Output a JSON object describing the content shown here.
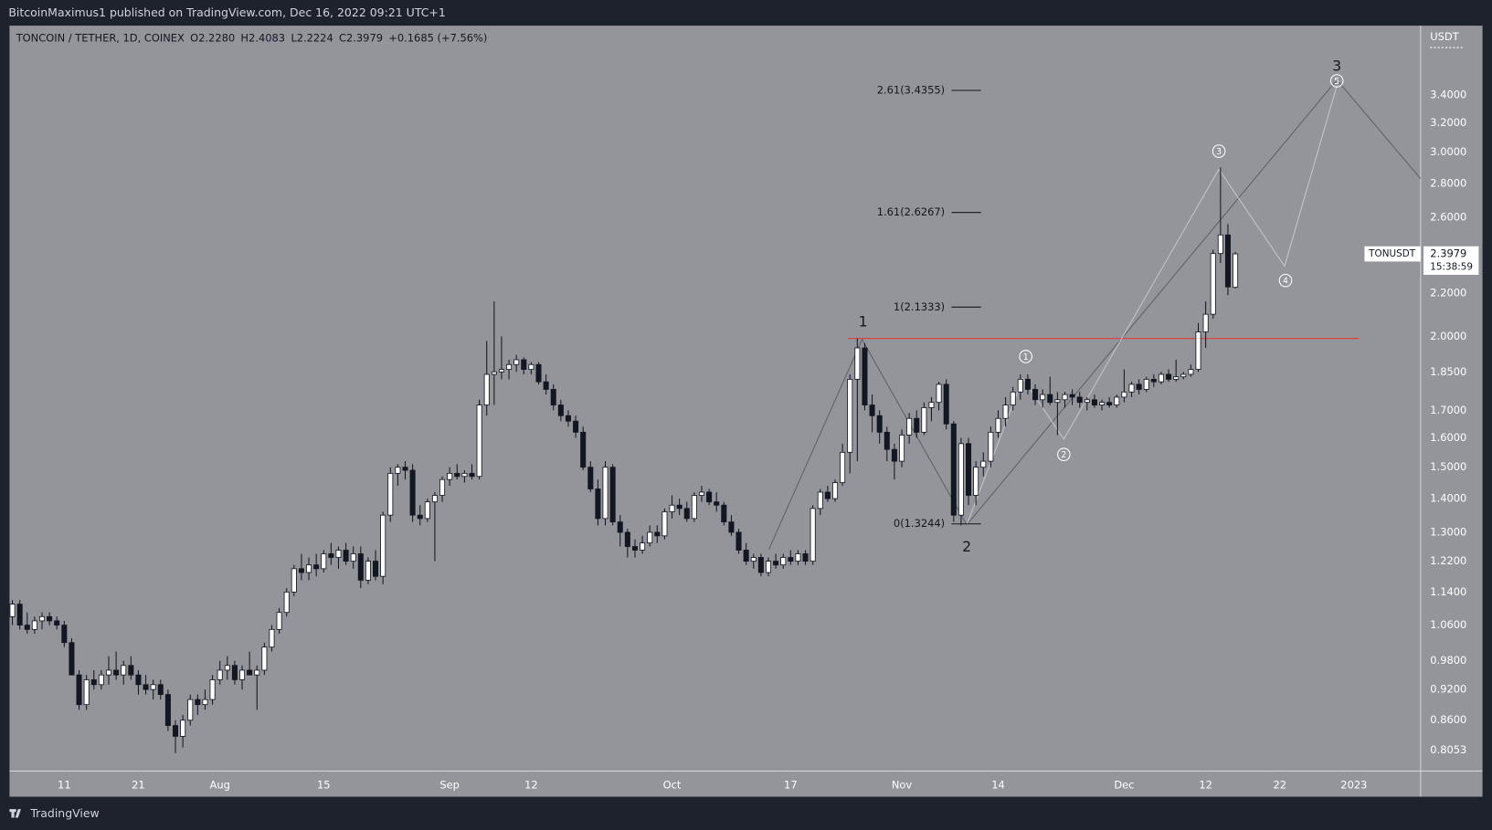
{
  "header": {
    "publisher": "BitcoinMaximus1 published on TradingView.com, Dec 16, 2022 09:21 UTC+1"
  },
  "footer": {
    "brand": "TradingView"
  },
  "chart_data": {
    "type": "candlestick",
    "title": "TONCOIN / TETHER, 1D, COINEX",
    "legend_items": [
      {
        "key": "O",
        "value": "2.2280"
      },
      {
        "key": "H",
        "value": "2.4083"
      },
      {
        "key": "L",
        "value": "2.2224"
      },
      {
        "key": "C",
        "value": "2.3979"
      }
    ],
    "change": "+0.1685 (+7.56%)",
    "currency": "USDT",
    "symbol": "TONUSDT",
    "last_price": 2.3979,
    "countdown": "15:38:59",
    "up_color": "#ffffff",
    "down_color": "#131722",
    "log_scale": true,
    "xlim": [
      -0.385,
      190.0
    ],
    "ylim": [
      0.769,
      3.961
    ],
    "xticks": [
      {
        "value": 7,
        "label": "11"
      },
      {
        "value": 17,
        "label": "21"
      },
      {
        "value": 28,
        "label": "Aug"
      },
      {
        "value": 42,
        "label": "15"
      },
      {
        "value": 59,
        "label": "Sep"
      },
      {
        "value": 70,
        "label": "12"
      },
      {
        "value": 89,
        "label": "Oct"
      },
      {
        "value": 105,
        "label": "17"
      },
      {
        "value": 120,
        "label": "Nov"
      },
      {
        "value": 133,
        "label": "14"
      },
      {
        "value": 150,
        "label": "Dec"
      },
      {
        "value": 161,
        "label": "12"
      },
      {
        "value": 171,
        "label": "22"
      },
      {
        "value": 181,
        "label": "2023"
      }
    ],
    "yticks": [
      {
        "value": 3.4,
        "label": "3.4000"
      },
      {
        "value": 3.2,
        "label": "3.2000"
      },
      {
        "value": 3.0,
        "label": "3.0000"
      },
      {
        "value": 2.8,
        "label": "2.8000"
      },
      {
        "value": 2.6,
        "label": "2.6000"
      },
      {
        "value": 2.2,
        "label": "2.2000"
      },
      {
        "value": 2.0,
        "label": "2.0000"
      },
      {
        "value": 1.85,
        "label": "1.8500"
      },
      {
        "value": 1.7,
        "label": "1.7000"
      },
      {
        "value": 1.6,
        "label": "1.6000"
      },
      {
        "value": 1.5,
        "label": "1.5000"
      },
      {
        "value": 1.4,
        "label": "1.4000"
      },
      {
        "value": 1.3,
        "label": "1.3000"
      },
      {
        "value": 1.22,
        "label": "1.2200"
      },
      {
        "value": 1.14,
        "label": "1.1400"
      },
      {
        "value": 1.06,
        "label": "1.0600"
      },
      {
        "value": 0.98,
        "label": "0.9800"
      },
      {
        "value": 0.92,
        "label": "0.9200"
      },
      {
        "value": 0.86,
        "label": "0.8600"
      },
      {
        "value": 0.8053,
        "label": "0.8053"
      }
    ],
    "fib_levels": [
      {
        "label": "2.61(3.4355)",
        "value": 3.4355
      },
      {
        "label": "1.61(2.6267)",
        "value": 2.6267
      },
      {
        "label": "1(2.1333)",
        "value": 2.1333
      },
      {
        "label": "0(1.3244)",
        "value": 1.3244
      }
    ],
    "waves": [
      "1",
      "2",
      "3"
    ],
    "subwaves": [
      "1",
      "2",
      "3",
      "4",
      "5"
    ],
    "series": [
      {
        "name": "TONUSDT",
        "values": [
          [
            1.08,
            1.12,
            1.06,
            1.11
          ],
          [
            1.11,
            1.12,
            1.05,
            1.06
          ],
          [
            1.06,
            1.09,
            1.04,
            1.05
          ],
          [
            1.05,
            1.08,
            1.04,
            1.07
          ],
          [
            1.07,
            1.09,
            1.05,
            1.08
          ],
          [
            1.08,
            1.09,
            1.06,
            1.07
          ],
          [
            1.07,
            1.08,
            1.05,
            1.06
          ],
          [
            1.06,
            1.07,
            1.01,
            1.02
          ],
          [
            1.02,
            1.03,
            0.95,
            0.95
          ],
          [
            0.95,
            0.96,
            0.88,
            0.89
          ],
          [
            0.89,
            0.95,
            0.88,
            0.94
          ],
          [
            0.94,
            0.96,
            0.92,
            0.93
          ],
          [
            0.93,
            0.96,
            0.92,
            0.95
          ],
          [
            0.95,
            0.99,
            0.93,
            0.96
          ],
          [
            0.96,
            1.0,
            0.94,
            0.95
          ],
          [
            0.95,
            0.98,
            0.93,
            0.97
          ],
          [
            0.97,
            0.99,
            0.94,
            0.95
          ],
          [
            0.95,
            0.96,
            0.91,
            0.93
          ],
          [
            0.93,
            0.95,
            0.91,
            0.92
          ],
          [
            0.92,
            0.94,
            0.9,
            0.93
          ],
          [
            0.93,
            0.94,
            0.9,
            0.91
          ],
          [
            0.91,
            0.92,
            0.84,
            0.85
          ],
          [
            0.85,
            0.86,
            0.8,
            0.83
          ],
          [
            0.83,
            0.87,
            0.81,
            0.86
          ],
          [
            0.86,
            0.91,
            0.85,
            0.9
          ],
          [
            0.9,
            0.91,
            0.87,
            0.89
          ],
          [
            0.89,
            0.92,
            0.88,
            0.9
          ],
          [
            0.9,
            0.95,
            0.89,
            0.94
          ],
          [
            0.94,
            0.98,
            0.93,
            0.96
          ],
          [
            0.96,
            0.99,
            0.94,
            0.97
          ],
          [
            0.97,
            0.98,
            0.93,
            0.94
          ],
          [
            0.94,
            0.97,
            0.92,
            0.96
          ],
          [
            0.96,
            1.0,
            0.95,
            0.95
          ],
          [
            0.95,
            0.97,
            0.88,
            0.96
          ],
          [
            0.96,
            1.02,
            0.95,
            1.01
          ],
          [
            1.01,
            1.06,
            1.0,
            1.05
          ],
          [
            1.05,
            1.1,
            1.04,
            1.09
          ],
          [
            1.09,
            1.15,
            1.08,
            1.14
          ],
          [
            1.14,
            1.21,
            1.13,
            1.2
          ],
          [
            1.2,
            1.24,
            1.17,
            1.19
          ],
          [
            1.19,
            1.23,
            1.17,
            1.21
          ],
          [
            1.21,
            1.24,
            1.18,
            1.2
          ],
          [
            1.2,
            1.25,
            1.19,
            1.24
          ],
          [
            1.24,
            1.27,
            1.21,
            1.23
          ],
          [
            1.23,
            1.26,
            1.2,
            1.25
          ],
          [
            1.25,
            1.27,
            1.21,
            1.22
          ],
          [
            1.22,
            1.26,
            1.2,
            1.24
          ],
          [
            1.24,
            1.26,
            1.15,
            1.17
          ],
          [
            1.17,
            1.23,
            1.16,
            1.22
          ],
          [
            1.22,
            1.25,
            1.17,
            1.18
          ],
          [
            1.18,
            1.36,
            1.16,
            1.35
          ],
          [
            1.35,
            1.5,
            1.33,
            1.48
          ],
          [
            1.48,
            1.51,
            1.44,
            1.5
          ],
          [
            1.5,
            1.52,
            1.46,
            1.49
          ],
          [
            1.49,
            1.51,
            1.33,
            1.35
          ],
          [
            1.35,
            1.38,
            1.32,
            1.34
          ],
          [
            1.34,
            1.4,
            1.33,
            1.39
          ],
          [
            1.39,
            1.42,
            1.22,
            1.41
          ],
          [
            1.41,
            1.47,
            1.39,
            1.46
          ],
          [
            1.46,
            1.5,
            1.44,
            1.48
          ],
          [
            1.48,
            1.51,
            1.46,
            1.47
          ],
          [
            1.47,
            1.49,
            1.45,
            1.48
          ],
          [
            1.48,
            1.51,
            1.46,
            1.47
          ],
          [
            1.47,
            1.74,
            1.46,
            1.72
          ],
          [
            1.72,
            1.98,
            1.68,
            1.84
          ],
          [
            1.84,
            2.16,
            1.72,
            1.85
          ],
          [
            1.85,
            2.0,
            1.82,
            1.86
          ],
          [
            1.86,
            1.9,
            1.82,
            1.88
          ],
          [
            1.88,
            1.92,
            1.85,
            1.9
          ],
          [
            1.9,
            1.91,
            1.84,
            1.86
          ],
          [
            1.86,
            1.89,
            1.84,
            1.88
          ],
          [
            1.88,
            1.89,
            1.8,
            1.81
          ],
          [
            1.81,
            1.84,
            1.76,
            1.78
          ],
          [
            1.78,
            1.8,
            1.7,
            1.72
          ],
          [
            1.72,
            1.74,
            1.66,
            1.68
          ],
          [
            1.68,
            1.7,
            1.64,
            1.66
          ],
          [
            1.66,
            1.68,
            1.6,
            1.62
          ],
          [
            1.62,
            1.64,
            1.49,
            1.5
          ],
          [
            1.5,
            1.52,
            1.42,
            1.43
          ],
          [
            1.43,
            1.46,
            1.32,
            1.34
          ],
          [
            1.34,
            1.52,
            1.32,
            1.5
          ],
          [
            1.5,
            1.51,
            1.32,
            1.33
          ],
          [
            1.33,
            1.35,
            1.26,
            1.3
          ],
          [
            1.3,
            1.31,
            1.23,
            1.26
          ],
          [
            1.26,
            1.28,
            1.23,
            1.25
          ],
          [
            1.25,
            1.29,
            1.24,
            1.27
          ],
          [
            1.27,
            1.32,
            1.26,
            1.3
          ],
          [
            1.3,
            1.32,
            1.27,
            1.29
          ],
          [
            1.29,
            1.37,
            1.28,
            1.36
          ],
          [
            1.36,
            1.41,
            1.34,
            1.38
          ],
          [
            1.38,
            1.4,
            1.35,
            1.37
          ],
          [
            1.37,
            1.39,
            1.33,
            1.34
          ],
          [
            1.34,
            1.42,
            1.33,
            1.41
          ],
          [
            1.41,
            1.44,
            1.39,
            1.42
          ],
          [
            1.42,
            1.43,
            1.38,
            1.39
          ],
          [
            1.39,
            1.42,
            1.36,
            1.38
          ],
          [
            1.38,
            1.39,
            1.32,
            1.33
          ],
          [
            1.33,
            1.35,
            1.29,
            1.3
          ],
          [
            1.3,
            1.31,
            1.24,
            1.25
          ],
          [
            1.25,
            1.27,
            1.21,
            1.22
          ],
          [
            1.22,
            1.24,
            1.2,
            1.23
          ],
          [
            1.23,
            1.24,
            1.18,
            1.19
          ],
          [
            1.19,
            1.23,
            1.18,
            1.22
          ],
          [
            1.22,
            1.24,
            1.2,
            1.21
          ],
          [
            1.21,
            1.24,
            1.2,
            1.23
          ],
          [
            1.23,
            1.25,
            1.21,
            1.22
          ],
          [
            1.22,
            1.25,
            1.21,
            1.24
          ],
          [
            1.24,
            1.25,
            1.21,
            1.22
          ],
          [
            1.22,
            1.38,
            1.21,
            1.37
          ],
          [
            1.37,
            1.43,
            1.35,
            1.42
          ],
          [
            1.42,
            1.44,
            1.39,
            1.4
          ],
          [
            1.4,
            1.46,
            1.39,
            1.45
          ],
          [
            1.45,
            1.58,
            1.44,
            1.55
          ],
          [
            1.55,
            1.84,
            1.48,
            1.82
          ],
          [
            1.82,
            1.99,
            1.52,
            1.95
          ],
          [
            1.95,
            1.97,
            1.7,
            1.72
          ],
          [
            1.72,
            1.76,
            1.62,
            1.68
          ],
          [
            1.68,
            1.7,
            1.58,
            1.62
          ],
          [
            1.62,
            1.64,
            1.52,
            1.56
          ],
          [
            1.56,
            1.58,
            1.46,
            1.52
          ],
          [
            1.52,
            1.63,
            1.5,
            1.61
          ],
          [
            1.61,
            1.69,
            1.58,
            1.67
          ],
          [
            1.67,
            1.7,
            1.6,
            1.62
          ],
          [
            1.62,
            1.73,
            1.61,
            1.71
          ],
          [
            1.71,
            1.75,
            1.66,
            1.73
          ],
          [
            1.73,
            1.81,
            1.7,
            1.8
          ],
          [
            1.8,
            1.82,
            1.63,
            1.65
          ],
          [
            1.65,
            1.66,
            1.33,
            1.35
          ],
          [
            1.35,
            1.6,
            1.32,
            1.58
          ],
          [
            1.58,
            1.6,
            1.38,
            1.41
          ],
          [
            1.41,
            1.52,
            1.38,
            1.5
          ],
          [
            1.5,
            1.55,
            1.47,
            1.52
          ],
          [
            1.52,
            1.64,
            1.5,
            1.62
          ],
          [
            1.62,
            1.7,
            1.6,
            1.67
          ],
          [
            1.67,
            1.75,
            1.64,
            1.72
          ],
          [
            1.72,
            1.79,
            1.7,
            1.77
          ],
          [
            1.77,
            1.84,
            1.74,
            1.82
          ],
          [
            1.82,
            1.84,
            1.76,
            1.78
          ],
          [
            1.78,
            1.8,
            1.72,
            1.74
          ],
          [
            1.74,
            1.78,
            1.71,
            1.76
          ],
          [
            1.76,
            1.83,
            1.72,
            1.73
          ],
          [
            1.73,
            1.77,
            1.61,
            1.74
          ],
          [
            1.74,
            1.77,
            1.71,
            1.76
          ],
          [
            1.76,
            1.78,
            1.72,
            1.75
          ],
          [
            1.75,
            1.77,
            1.71,
            1.73
          ],
          [
            1.73,
            1.75,
            1.7,
            1.74
          ],
          [
            1.74,
            1.76,
            1.71,
            1.72
          ],
          [
            1.72,
            1.74,
            1.7,
            1.73
          ],
          [
            1.73,
            1.75,
            1.71,
            1.72
          ],
          [
            1.72,
            1.76,
            1.71,
            1.75
          ],
          [
            1.75,
            1.86,
            1.73,
            1.77
          ],
          [
            1.77,
            1.81,
            1.75,
            1.8
          ],
          [
            1.8,
            1.82,
            1.76,
            1.78
          ],
          [
            1.78,
            1.83,
            1.77,
            1.82
          ],
          [
            1.82,
            1.84,
            1.79,
            1.81
          ],
          [
            1.81,
            1.85,
            1.8,
            1.84
          ],
          [
            1.84,
            1.86,
            1.81,
            1.82
          ],
          [
            1.82,
            1.9,
            1.81,
            1.83
          ],
          [
            1.83,
            1.85,
            1.82,
            1.84
          ],
          [
            1.84,
            1.88,
            1.83,
            1.86
          ],
          [
            1.86,
            2.06,
            1.85,
            2.02
          ],
          [
            2.02,
            2.16,
            1.95,
            2.1
          ],
          [
            2.1,
            2.42,
            2.08,
            2.4
          ],
          [
            2.4,
            2.9,
            2.35,
            2.5
          ],
          [
            2.5,
            2.56,
            2.19,
            2.23
          ],
          [
            2.228,
            2.4083,
            2.2224,
            2.3979
          ]
        ]
      }
    ]
  }
}
